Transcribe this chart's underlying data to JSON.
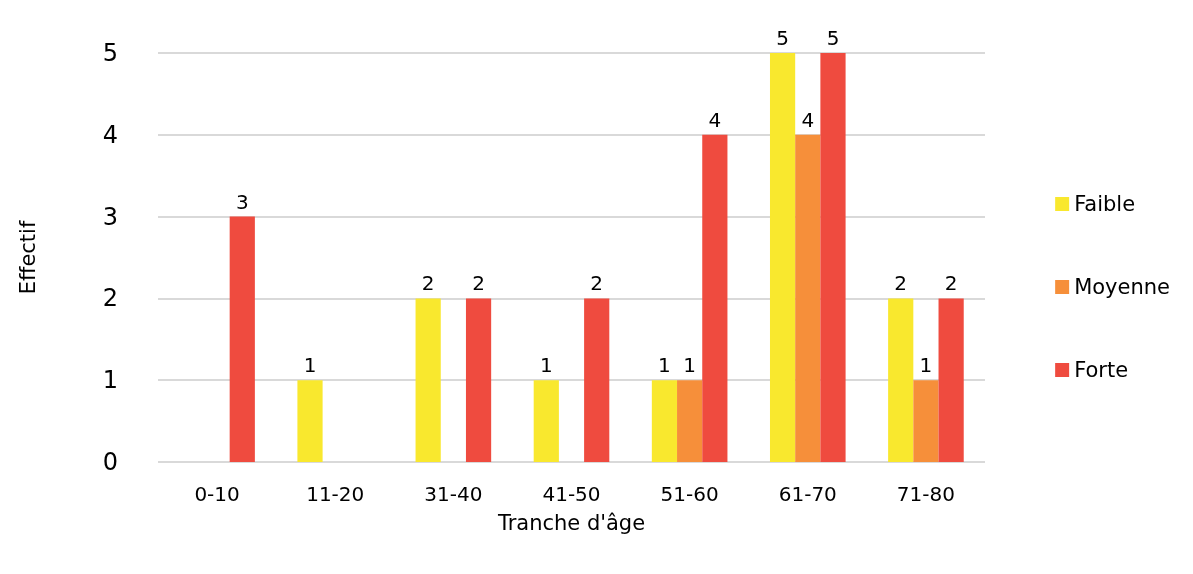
{
  "chart_data": {
    "type": "bar",
    "xlabel": "Tranche d'âge",
    "ylabel": "Effectif",
    "categories": [
      "0-10",
      "11-20",
      "31-40",
      "41-50",
      "51-60",
      "61-70",
      "71-80"
    ],
    "series": [
      {
        "name": "Faible",
        "color": "#f9e82e",
        "values": [
          null,
          1,
          2,
          1,
          1,
          5,
          2
        ]
      },
      {
        "name": "Moyenne",
        "color": "#f68f3a",
        "values": [
          null,
          null,
          null,
          null,
          1,
          4,
          1
        ]
      },
      {
        "name": "Forte",
        "color": "#ef4b3f",
        "values": [
          3,
          null,
          2,
          2,
          4,
          5,
          2
        ]
      }
    ],
    "ylim": [
      0,
      5
    ],
    "yticks": [
      0,
      1,
      2,
      3,
      4,
      5
    ],
    "grid": "y",
    "legend": "right",
    "data_labels": true
  }
}
